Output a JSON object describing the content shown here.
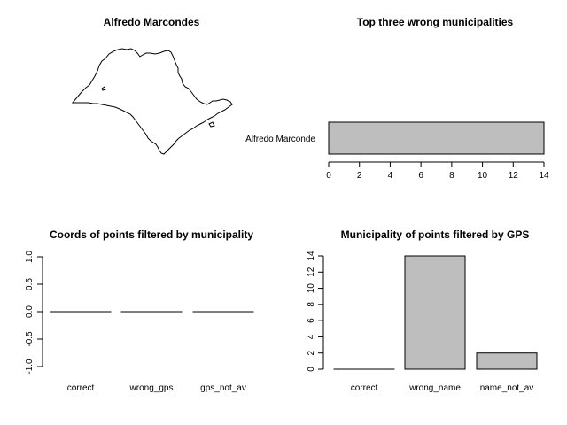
{
  "panels": {
    "map": {
      "title": "Alfredo Marcondes"
    },
    "top_wrong": {
      "title": "Top three wrong municipalities"
    },
    "coords": {
      "title": "Coords of points filtered by municipality"
    },
    "gps": {
      "title": "Municipality of points filtered by GPS"
    }
  },
  "chart_data": [
    {
      "type": "bar",
      "orientation": "horizontal",
      "title": "Top three wrong municipalities",
      "categories": [
        "Alfredo Marconde"
      ],
      "values": [
        14
      ],
      "xlim": [
        0,
        14
      ],
      "xticks": [
        0,
        2,
        4,
        6,
        8,
        10,
        12,
        14
      ],
      "bar_color": "#bebebe"
    },
    {
      "type": "bar",
      "title": "Coords of points filtered by municipality",
      "categories": [
        "correct",
        "wrong_gps",
        "gps_not_av"
      ],
      "values": [
        0,
        0,
        0
      ],
      "ylim": [
        -1.0,
        1.0
      ],
      "yticks": [
        "-1.0",
        "-0.5",
        "0.0",
        "0.5",
        "1.0"
      ],
      "bar_color": "#bebebe"
    },
    {
      "type": "bar",
      "title": "Municipality of points filtered by GPS",
      "categories": [
        "correct",
        "wrong_name",
        "name_not_av"
      ],
      "values": [
        0,
        14,
        2
      ],
      "ylim": [
        0,
        14
      ],
      "yticks": [
        0,
        2,
        4,
        6,
        8,
        10,
        12,
        14
      ],
      "bar_color": "#bebebe"
    }
  ]
}
